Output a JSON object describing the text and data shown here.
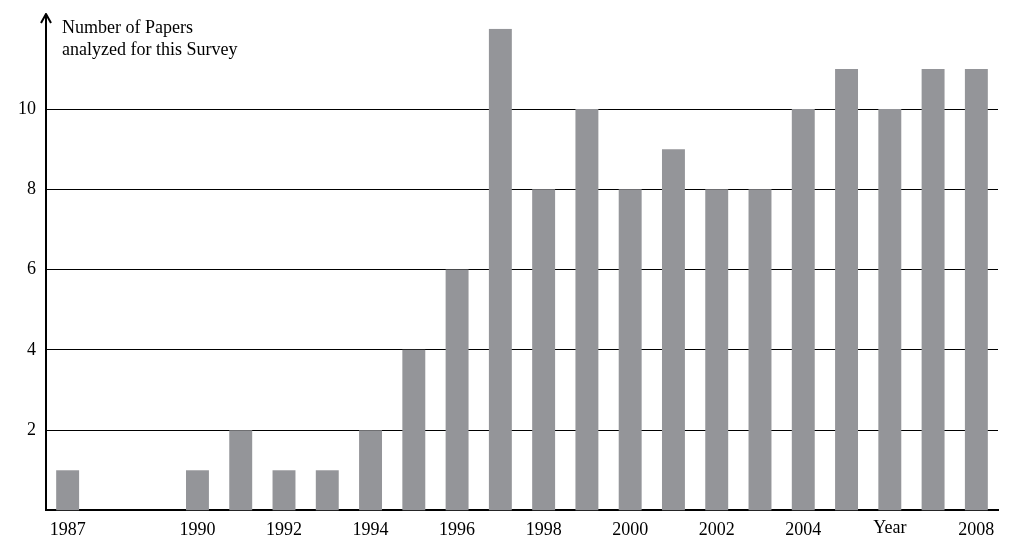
{
  "chart_data": {
    "type": "bar",
    "xlabel": "Year",
    "ylabel": "Number of Papers\nanalyzed for this Survey",
    "categories": [
      "1987",
      null,
      null,
      "1990",
      null,
      "1992",
      null,
      "1994",
      null,
      "1996",
      null,
      "1998",
      null,
      "2000",
      null,
      "2002",
      null,
      "2004",
      null,
      null,
      null,
      "2008"
    ],
    "values": [
      1,
      0,
      0,
      1,
      2,
      1,
      1,
      2,
      4,
      6,
      12,
      8,
      10,
      8,
      9,
      8,
      8,
      10,
      11,
      10,
      11,
      11
    ],
    "color": "#949599",
    "ylim": [
      0,
      12
    ],
    "yticks": [
      2,
      4,
      6,
      8,
      10
    ],
    "grid": "y",
    "legend": false
  }
}
